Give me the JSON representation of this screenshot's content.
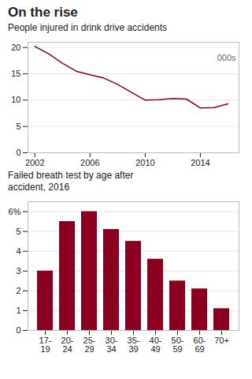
{
  "chart_data": [
    {
      "type": "line",
      "title": "On the rise",
      "subtitle": "People injured in drink drive accidents",
      "annotation": "000s",
      "x": [
        2002,
        2003,
        2004,
        2005,
        2006,
        2007,
        2008,
        2009,
        2010,
        2011,
        2012,
        2013,
        2014,
        2015,
        2016
      ],
      "values": [
        20.2,
        18.8,
        17.0,
        15.5,
        14.8,
        14.2,
        13.0,
        11.5,
        10.0,
        10.1,
        10.3,
        10.2,
        8.5,
        8.6,
        9.3
      ],
      "color": "#8b0020",
      "xlim": [
        2001.5,
        2016.8
      ],
      "xticks": [
        2002,
        2006,
        2010,
        2014
      ],
      "ylim": [
        0,
        21
      ],
      "yticks": [
        0,
        5,
        10,
        15,
        20
      ],
      "grid": true
    },
    {
      "type": "bar",
      "subtitle": "Failed breath test by age after\naccident, 2016",
      "categories": [
        "17-\n19",
        "20-\n24",
        "25-\n29",
        "30-\n34",
        "35-\n39",
        "40-\n49",
        "50-\n59",
        "60-\n69",
        "70+"
      ],
      "values": [
        3.0,
        5.5,
        6.0,
        5.1,
        4.5,
        3.6,
        2.5,
        2.1,
        1.1
      ],
      "color": "#8b0020",
      "ylim": [
        0,
        6.5
      ],
      "yticks": [
        0,
        1,
        2,
        3,
        4,
        5,
        {
          "value": 6,
          "label": "6%"
        }
      ],
      "grid": true
    }
  ]
}
